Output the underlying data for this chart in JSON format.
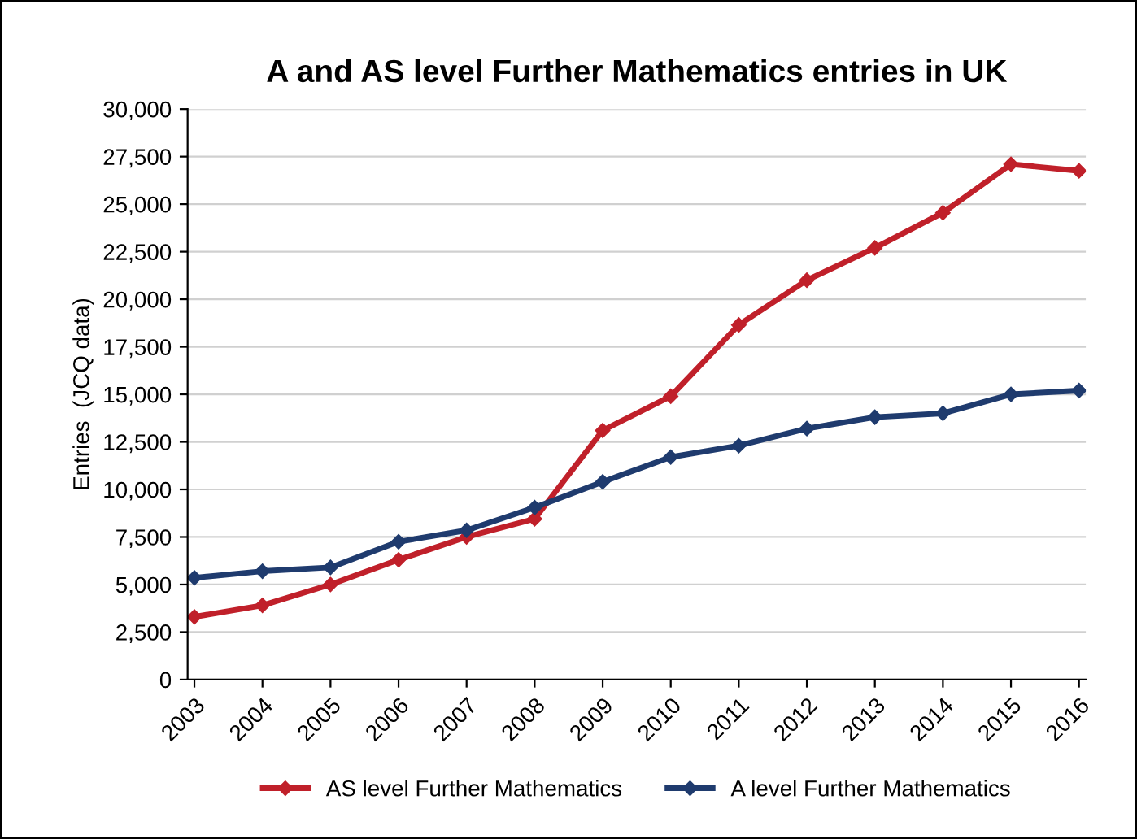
{
  "chart_data": {
    "type": "line",
    "title": "A and AS level Further Mathematics entries in UK",
    "ylabel": "Entries  (JCQ data)",
    "categories": [
      "2003",
      "2004",
      "2005",
      "2006",
      "2007",
      "2008",
      "2009",
      "2010",
      "2011",
      "2012",
      "2013",
      "2014",
      "2015",
      "2016"
    ],
    "series": [
      {
        "name": "AS level Further Mathematics",
        "color": "#c0202a",
        "values": [
          3300,
          3900,
          5000,
          6300,
          7500,
          8450,
          13100,
          14900,
          18650,
          21000,
          22700,
          24550,
          27100,
          26750
        ]
      },
      {
        "name": "A level Further Mathematics",
        "color": "#1f3b6e",
        "values": [
          5350,
          5700,
          5900,
          7250,
          7850,
          9050,
          10400,
          11700,
          12300,
          13200,
          13800,
          14000,
          15000,
          15200
        ]
      }
    ],
    "ylim": [
      0,
      30000
    ],
    "yticks": [
      {
        "value": 0,
        "label": "0"
      },
      {
        "value": 2500,
        "label": "2,500"
      },
      {
        "value": 5000,
        "label": "5,000"
      },
      {
        "value": 7500,
        "label": "7,500"
      },
      {
        "value": 10000,
        "label": "10,000"
      },
      {
        "value": 12500,
        "label": "12,500"
      },
      {
        "value": 15000,
        "label": "15,000"
      },
      {
        "value": 17500,
        "label": "17,500"
      },
      {
        "value": 20000,
        "label": "20,000"
      },
      {
        "value": 22500,
        "label": "22,500"
      },
      {
        "value": 25000,
        "label": "25,000"
      },
      {
        "value": 27500,
        "label": "27,500"
      },
      {
        "value": 30000,
        "label": "30,000"
      }
    ],
    "grid": "y",
    "legend": "bottom",
    "marker": "diamond",
    "line_style": "solid"
  }
}
